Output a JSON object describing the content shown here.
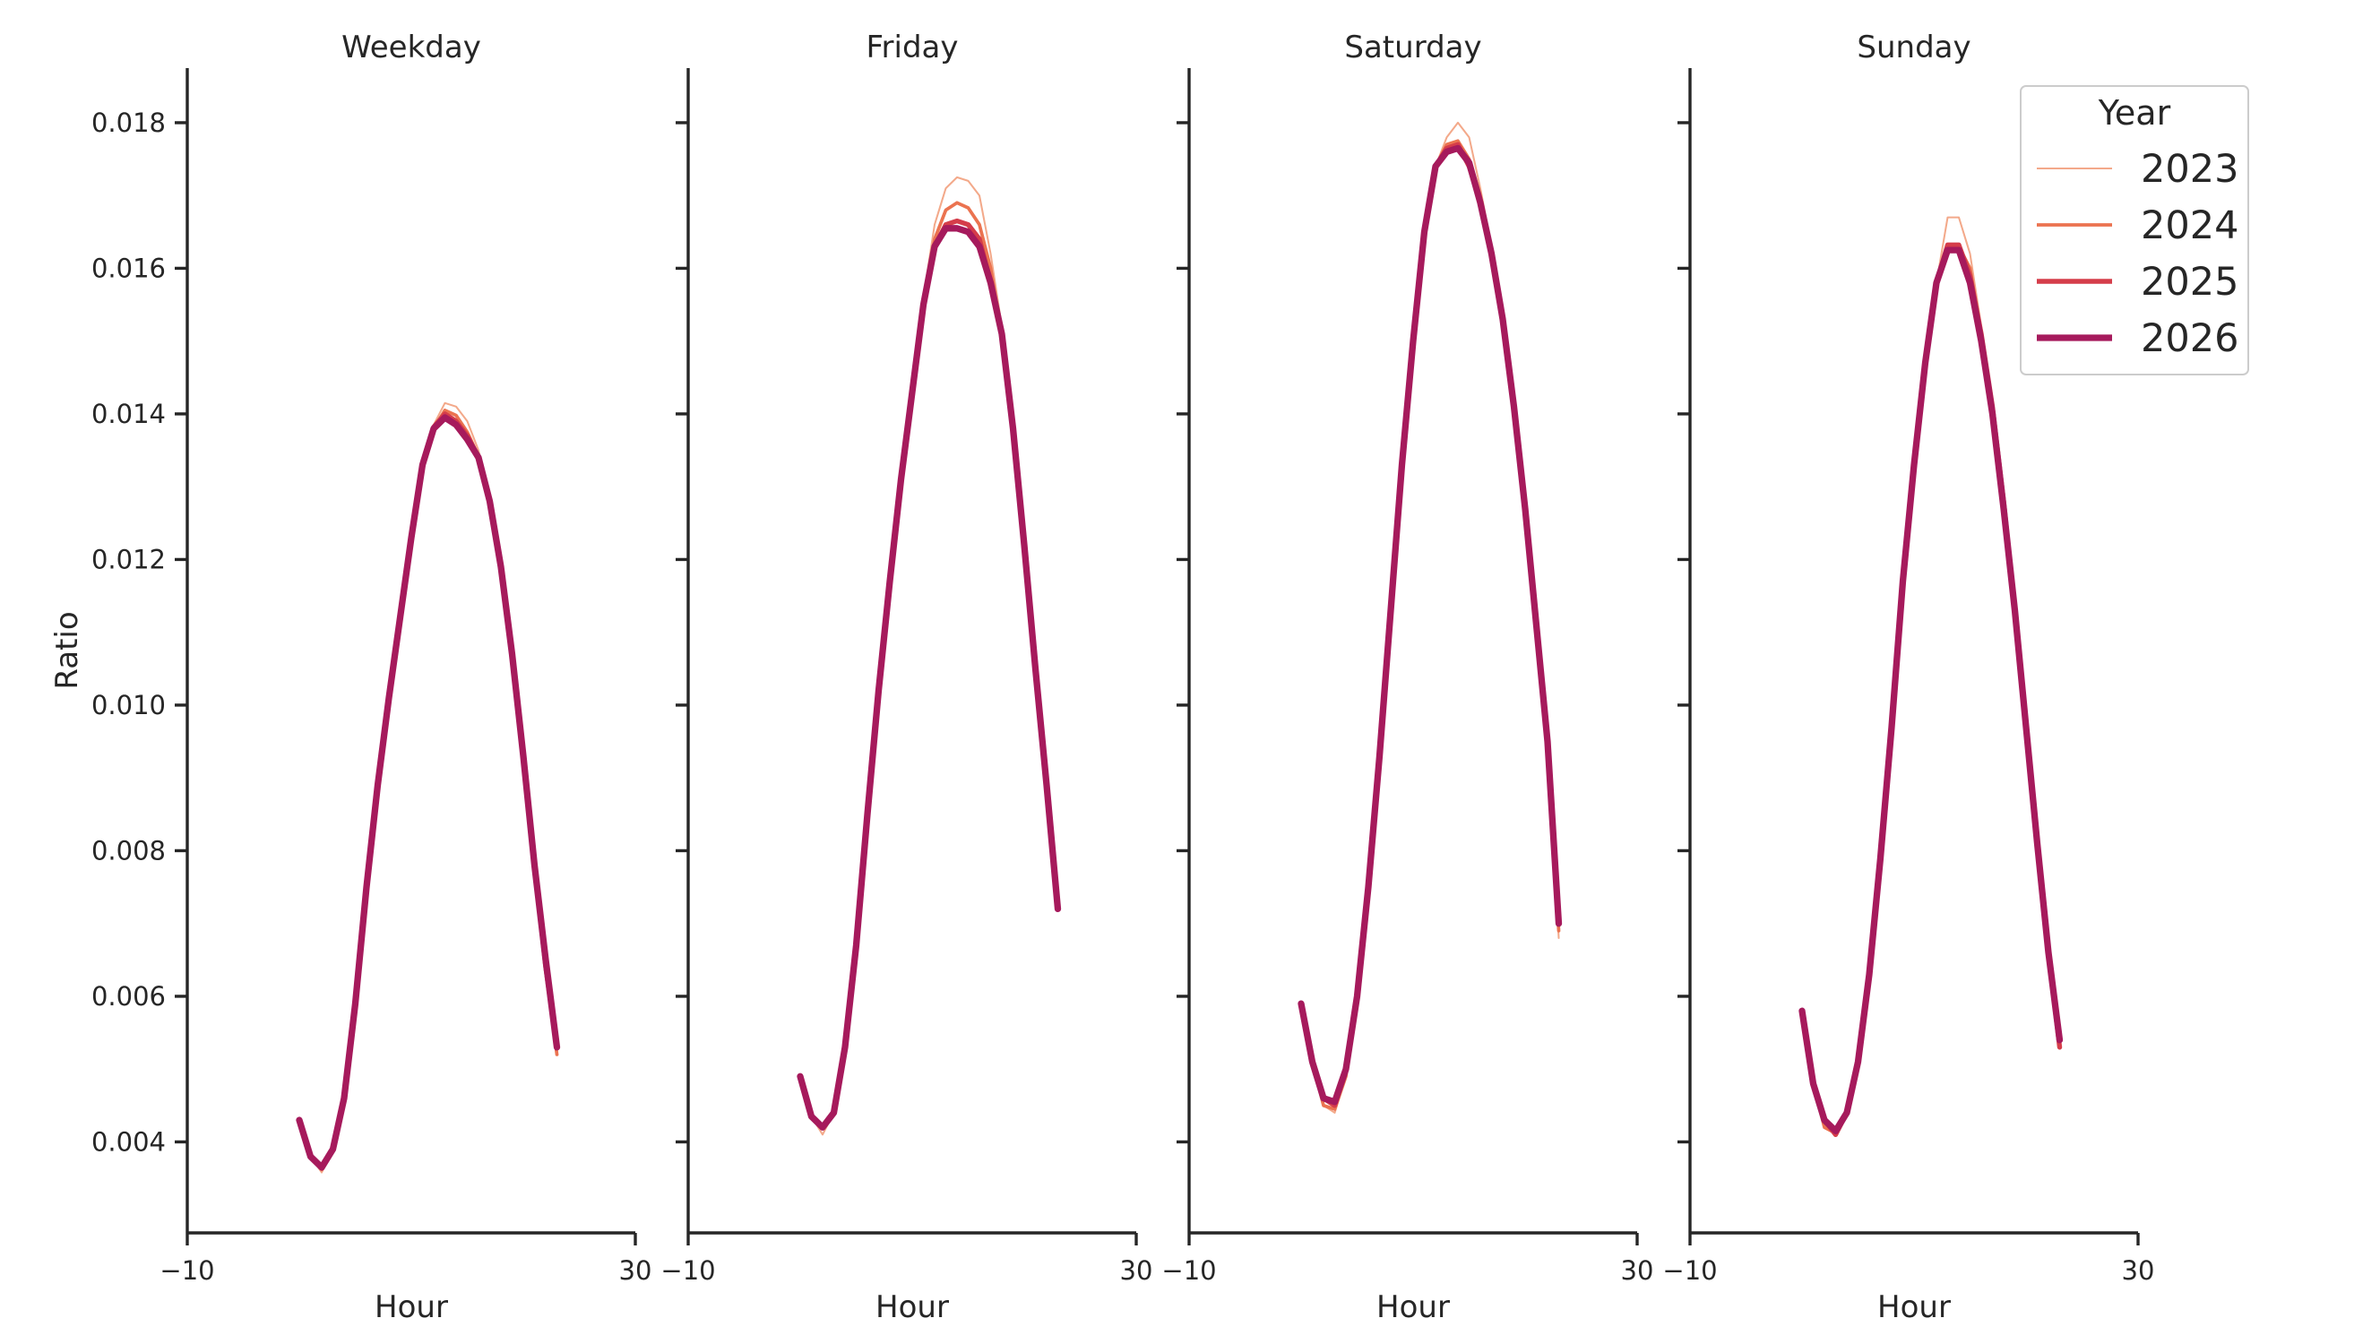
{
  "chart_data": {
    "type": "line",
    "facets": [
      {
        "title": "Weekday",
        "x_label": "Hour",
        "y_label": "Ratio"
      },
      {
        "title": "Friday",
        "x_label": "Hour",
        "y_label": ""
      },
      {
        "title": "Saturday",
        "x_label": "Hour",
        "y_label": ""
      },
      {
        "title": "Sunday",
        "x_label": "Hour",
        "y_label": ""
      }
    ],
    "xlim": [
      -10,
      30
    ],
    "ylim": [
      0.00275,
      0.01875
    ],
    "x_ticks": [
      -10,
      30
    ],
    "x_tick_labels": [
      "−10",
      "30"
    ],
    "y_ticks": [
      0.004,
      0.006,
      0.008,
      0.01,
      0.012,
      0.014,
      0.016,
      0.018
    ],
    "y_tick_labels": [
      "0.004",
      "0.006",
      "0.008",
      "0.010",
      "0.012",
      "0.014",
      "0.016",
      "0.018"
    ],
    "grid": false,
    "legend": {
      "title": "Year",
      "placement": "upper right",
      "entries": [
        {
          "label": "2023",
          "color": "#f3a98a",
          "width": 1.2
        },
        {
          "label": "2024",
          "color": "#eb7350",
          "width": 2.2
        },
        {
          "label": "2025",
          "color": "#d53d4a",
          "width": 3.2
        },
        {
          "label": "2026",
          "color": "#a61a5c",
          "width": 4.3
        }
      ]
    },
    "x": [
      0,
      1,
      2,
      3,
      4,
      5,
      6,
      7,
      8,
      9,
      10,
      11,
      12,
      13,
      14,
      15,
      16,
      17,
      18,
      19,
      20,
      21,
      22,
      23
    ],
    "series": [
      {
        "facet": 0,
        "name": "2023",
        "values": [
          0.0043,
          0.0038,
          0.00358,
          0.0039,
          0.0046,
          0.0059,
          0.0075,
          0.0089,
          0.0101,
          0.0112,
          0.0123,
          0.0133,
          0.01385,
          0.01415,
          0.0141,
          0.0139,
          0.0135,
          0.0128,
          0.0119,
          0.0107,
          0.0093,
          0.0078,
          0.0064,
          0.0052
        ]
      },
      {
        "facet": 0,
        "name": "2024",
        "values": [
          0.0043,
          0.0038,
          0.00362,
          0.0039,
          0.0046,
          0.0059,
          0.0075,
          0.0089,
          0.0101,
          0.0112,
          0.0123,
          0.0133,
          0.0138,
          0.01405,
          0.01398,
          0.01375,
          0.01342,
          0.0128,
          0.0119,
          0.0107,
          0.0093,
          0.0078,
          0.0064,
          0.0052
        ]
      },
      {
        "facet": 0,
        "name": "2025",
        "values": [
          0.0043,
          0.0038,
          0.00364,
          0.0039,
          0.0046,
          0.0059,
          0.0075,
          0.0089,
          0.0101,
          0.0112,
          0.0123,
          0.0133,
          0.01382,
          0.014,
          0.0139,
          0.0137,
          0.0134,
          0.0128,
          0.0119,
          0.0107,
          0.0093,
          0.0078,
          0.0064,
          0.0053
        ]
      },
      {
        "facet": 0,
        "name": "2026",
        "values": [
          0.0043,
          0.0038,
          0.00365,
          0.0039,
          0.0046,
          0.0059,
          0.0075,
          0.0089,
          0.0101,
          0.0112,
          0.0123,
          0.0133,
          0.0138,
          0.01395,
          0.01385,
          0.01365,
          0.0134,
          0.0128,
          0.0119,
          0.0107,
          0.0093,
          0.0078,
          0.0065,
          0.0053
        ]
      },
      {
        "facet": 1,
        "name": "2023",
        "values": [
          0.0049,
          0.00435,
          0.0041,
          0.0044,
          0.0053,
          0.0068,
          0.0087,
          0.0104,
          0.0119,
          0.0132,
          0.0144,
          0.0156,
          0.0166,
          0.0171,
          0.01725,
          0.0172,
          0.017,
          0.0162,
          0.0152,
          0.0138,
          0.0122,
          0.0105,
          0.0088,
          0.0072
        ]
      },
      {
        "facet": 1,
        "name": "2024",
        "values": [
          0.0049,
          0.00435,
          0.00418,
          0.0044,
          0.0053,
          0.0067,
          0.0085,
          0.0102,
          0.0117,
          0.0131,
          0.0143,
          0.0155,
          0.0164,
          0.0168,
          0.0169,
          0.01683,
          0.0166,
          0.016,
          0.0151,
          0.0138,
          0.0122,
          0.0105,
          0.0089,
          0.0073
        ]
      },
      {
        "facet": 1,
        "name": "2025",
        "values": [
          0.0049,
          0.00435,
          0.0042,
          0.0044,
          0.0053,
          0.0067,
          0.0085,
          0.0102,
          0.0117,
          0.0131,
          0.0143,
          0.0155,
          0.0163,
          0.0166,
          0.01665,
          0.0166,
          0.0164,
          0.0158,
          0.0151,
          0.0138,
          0.0122,
          0.0105,
          0.0089,
          0.0072
        ]
      },
      {
        "facet": 1,
        "name": "2026",
        "values": [
          0.0049,
          0.00435,
          0.0042,
          0.0044,
          0.0053,
          0.0067,
          0.0085,
          0.0102,
          0.0117,
          0.0131,
          0.0143,
          0.0155,
          0.0163,
          0.01655,
          0.01655,
          0.0165,
          0.0163,
          0.0158,
          0.0151,
          0.0138,
          0.0122,
          0.0105,
          0.0089,
          0.0072
        ]
      },
      {
        "facet": 2,
        "name": "2023",
        "values": [
          0.0059,
          0.0051,
          0.0045,
          0.0044,
          0.0049,
          0.006,
          0.0075,
          0.0093,
          0.0113,
          0.0133,
          0.015,
          0.0165,
          0.0174,
          0.0178,
          0.018,
          0.0178,
          0.0171,
          0.0163,
          0.0153,
          0.0141,
          0.0127,
          0.0111,
          0.0095,
          0.0068
        ]
      },
      {
        "facet": 2,
        "name": "2024",
        "values": [
          0.0059,
          0.0051,
          0.0045,
          0.00445,
          0.0049,
          0.006,
          0.0075,
          0.0093,
          0.0113,
          0.0133,
          0.015,
          0.0165,
          0.0174,
          0.0177,
          0.01775,
          0.0175,
          0.017,
          0.0162,
          0.0153,
          0.0141,
          0.0127,
          0.0111,
          0.0095,
          0.0069
        ]
      },
      {
        "facet": 2,
        "name": "2025",
        "values": [
          0.0059,
          0.0051,
          0.0046,
          0.0045,
          0.005,
          0.006,
          0.0075,
          0.0093,
          0.0113,
          0.0133,
          0.015,
          0.0165,
          0.0174,
          0.01765,
          0.0177,
          0.0174,
          0.0169,
          0.0162,
          0.0153,
          0.0141,
          0.0127,
          0.0111,
          0.0095,
          0.007
        ]
      },
      {
        "facet": 2,
        "name": "2026",
        "values": [
          0.0059,
          0.0051,
          0.0046,
          0.00455,
          0.005,
          0.006,
          0.0075,
          0.0093,
          0.0113,
          0.0133,
          0.015,
          0.0165,
          0.0174,
          0.0176,
          0.01765,
          0.01745,
          0.0169,
          0.0162,
          0.0153,
          0.0141,
          0.0127,
          0.0111,
          0.0095,
          0.007
        ]
      },
      {
        "facet": 3,
        "name": "2023",
        "values": [
          0.0058,
          0.0048,
          0.0042,
          0.0041,
          0.0044,
          0.0051,
          0.0063,
          0.0079,
          0.0097,
          0.0117,
          0.0133,
          0.0147,
          0.0158,
          0.0167,
          0.0167,
          0.0162,
          0.0152,
          0.0141,
          0.0128,
          0.0113,
          0.0097,
          0.0081,
          0.0066,
          0.0053
        ]
      },
      {
        "facet": 3,
        "name": "2024",
        "values": [
          0.0058,
          0.0048,
          0.0042,
          0.00412,
          0.0044,
          0.0051,
          0.0063,
          0.0079,
          0.0097,
          0.0117,
          0.0133,
          0.0147,
          0.0158,
          0.0163,
          0.0163,
          0.016,
          0.0151,
          0.0141,
          0.0128,
          0.0113,
          0.0097,
          0.0081,
          0.0066,
          0.0053
        ]
      },
      {
        "facet": 3,
        "name": "2025",
        "values": [
          0.0058,
          0.0048,
          0.0043,
          0.0041,
          0.0044,
          0.0051,
          0.0063,
          0.0079,
          0.0097,
          0.0117,
          0.0133,
          0.0147,
          0.0158,
          0.01632,
          0.01632,
          0.0159,
          0.0151,
          0.0141,
          0.0128,
          0.0113,
          0.0097,
          0.0081,
          0.0066,
          0.0053
        ]
      },
      {
        "facet": 3,
        "name": "2026",
        "values": [
          0.0058,
          0.0048,
          0.0043,
          0.00415,
          0.0044,
          0.0051,
          0.0063,
          0.0079,
          0.0097,
          0.0117,
          0.0133,
          0.0147,
          0.0158,
          0.01625,
          0.01625,
          0.0158,
          0.015,
          0.014,
          0.0127,
          0.0113,
          0.0097,
          0.0081,
          0.0066,
          0.0054
        ]
      }
    ]
  }
}
